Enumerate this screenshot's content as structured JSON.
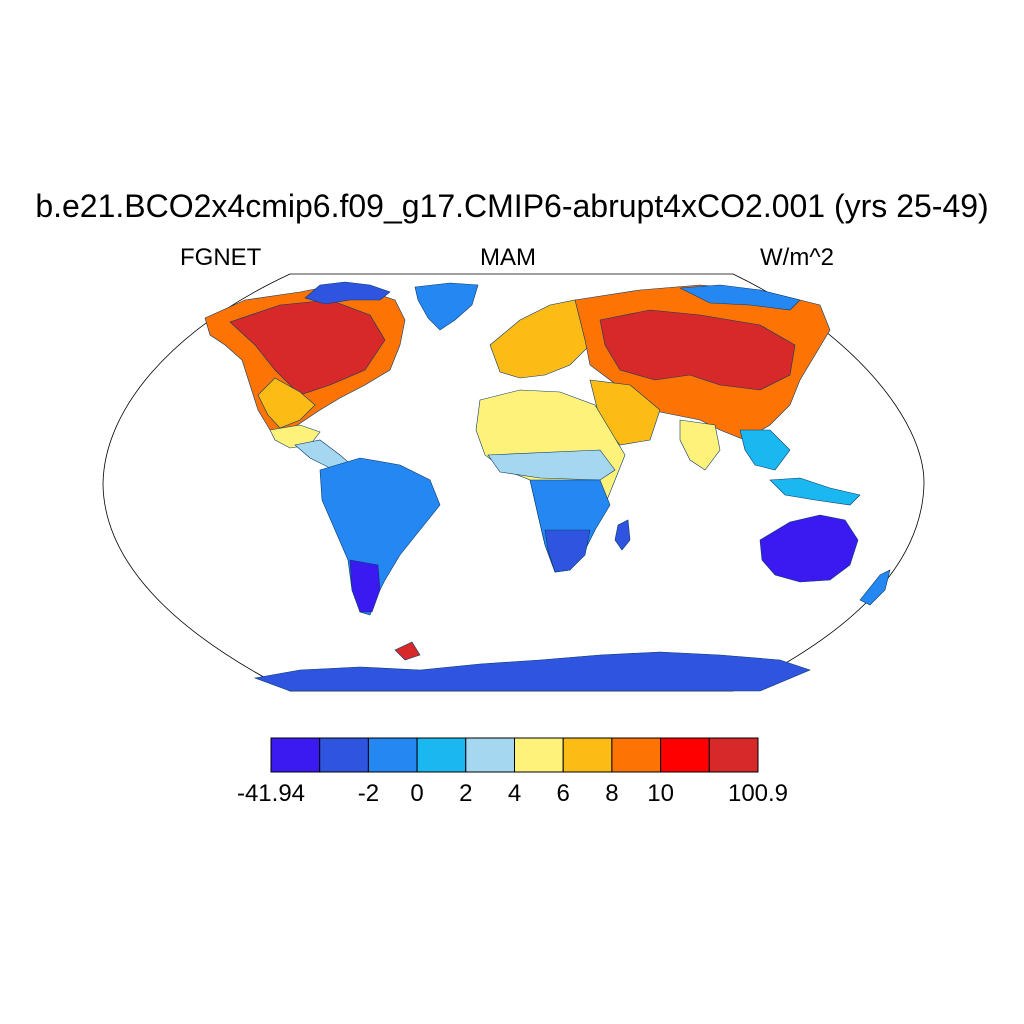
{
  "title": "b.e21.BCO2x4cmip6.f09_g17.CMIP6-abrupt4xCO2.001 (yrs 25-49)",
  "subtitle_left": "FGNET",
  "subtitle_center": "MAM",
  "subtitle_right": "W/m^2",
  "colorbar": {
    "colors": [
      "#3a1af0",
      "#2f55e0",
      "#2588f2",
      "#1ab7f0",
      "#a5d8f0",
      "#fff27a",
      "#fdbb16",
      "#fd7404",
      "#ff0000",
      "#d72929"
    ],
    "tick_labels": [
      "-41.94",
      "-2",
      "0",
      "2",
      "4",
      "6",
      "8",
      "10",
      "100.9"
    ]
  },
  "colors": {
    "ocean": "#ffffff",
    "outline": "#000000"
  }
}
